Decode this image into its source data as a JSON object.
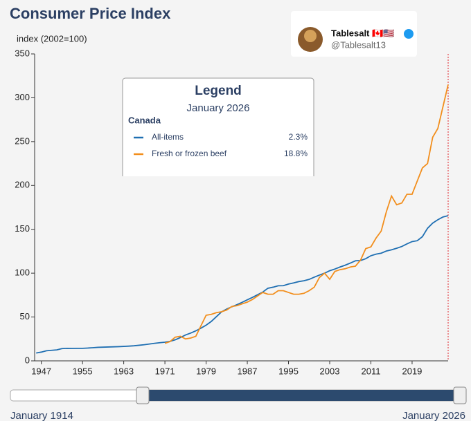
{
  "chart_data": {
    "type": "line",
    "title": "Consumer Price Index",
    "y_label": "index (2002=100)",
    "x": [
      1946,
      1947,
      1948,
      1949,
      1950,
      1951,
      1952,
      1953,
      1954,
      1955,
      1956,
      1957,
      1958,
      1959,
      1960,
      1961,
      1962,
      1963,
      1964,
      1965,
      1966,
      1967,
      1968,
      1969,
      1970,
      1971,
      1972,
      1973,
      1974,
      1975,
      1976,
      1977,
      1978,
      1979,
      1980,
      1981,
      1982,
      1983,
      1984,
      1985,
      1986,
      1987,
      1988,
      1989,
      1990,
      1991,
      1992,
      1993,
      1994,
      1995,
      1996,
      1997,
      1998,
      1999,
      2000,
      2001,
      2002,
      2003,
      2004,
      2005,
      2006,
      2007,
      2008,
      2009,
      2010,
      2011,
      2012,
      2013,
      2014,
      2015,
      2016,
      2017,
      2018,
      2019,
      2020,
      2021,
      2022,
      2023,
      2024,
      2025,
      2026
    ],
    "series": [
      {
        "name": "All-items",
        "change": "2.3%",
        "color": "#1f6fb2",
        "values": [
          9,
          10,
          11.5,
          12,
          12.5,
          14,
          14.3,
          14.2,
          14.3,
          14.3,
          14.6,
          15,
          15.4,
          15.6,
          15.8,
          16,
          16.2,
          16.5,
          16.8,
          17.2,
          17.8,
          18.4,
          19.2,
          20,
          20.7,
          21.3,
          22.3,
          24,
          26.6,
          29.5,
          31.7,
          34.2,
          37.3,
          40.7,
          44.9,
          50.4,
          55.9,
          59.1,
          61.7,
          64.1,
          66.8,
          69.6,
          72.4,
          75.4,
          78.4,
          82.8,
          84,
          85.6,
          85.7,
          87.6,
          88.9,
          90.4,
          91.3,
          92.9,
          95.4,
          97.8,
          100,
          102.8,
          104.7,
          107,
          109.1,
          111.5,
          114.1,
          114.4,
          116.5,
          119.9,
          121.7,
          122.8,
          125.2,
          126.6,
          128.4,
          130.4,
          133.4,
          136,
          137,
          141.6,
          151.2,
          157.1,
          160.9,
          164.1,
          165.5
        ]
      },
      {
        "name": "Fresh or frozen beef",
        "change": "18.8%",
        "color": "#f28e1c",
        "values": [
          null,
          null,
          null,
          null,
          null,
          null,
          null,
          null,
          null,
          null,
          null,
          null,
          null,
          null,
          null,
          null,
          null,
          null,
          null,
          null,
          null,
          null,
          null,
          null,
          null,
          20,
          22,
          27,
          28,
          25,
          26,
          28,
          40,
          52,
          53,
          55,
          56,
          58,
          62,
          63,
          65,
          67,
          70,
          74,
          78,
          76,
          76,
          80,
          80,
          78,
          76,
          76,
          77,
          80,
          84,
          95,
          100,
          93,
          102,
          104,
          105,
          107,
          108,
          115,
          128,
          130,
          140,
          148,
          170,
          188,
          178,
          180,
          190,
          190,
          205,
          220,
          225,
          255,
          265,
          290,
          315
        ]
      }
    ],
    "xlim": [
      1945.7,
      2026
    ],
    "xticks": [
      1947,
      1955,
      1963,
      1971,
      1979,
      1987,
      1995,
      2003,
      2011,
      2019
    ],
    "ylim": [
      0,
      350
    ],
    "yticks": [
      0,
      50,
      100,
      150,
      200,
      250,
      300,
      350
    ],
    "cursor": 2026,
    "legend": {
      "title": "Legend",
      "date": "January 2026",
      "region": "Canada"
    },
    "slider": {
      "start_label": "January 1914",
      "end_label": "January 2026"
    }
  },
  "badge": {
    "name": "Tablesalt 🇨🇦🇺🇸",
    "handle": "@Tablesalt13"
  }
}
